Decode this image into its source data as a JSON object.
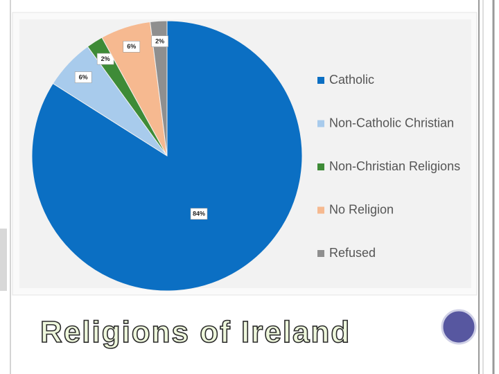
{
  "chart_data": {
    "type": "pie",
    "title": "Religions of Ireland",
    "categories": [
      "Catholic",
      "Non-Catholic Christian",
      "Non-Christian Religions",
      "No Religion",
      "Refused"
    ],
    "values": [
      84,
      6,
      2,
      6,
      2
    ],
    "value_labels": [
      "84%",
      "6%",
      "2%",
      "6%",
      "2%"
    ],
    "colors": [
      "#0b6fc3",
      "#a8cbec",
      "#3e8b37",
      "#f6b990",
      "#8f8f8f"
    ]
  }
}
